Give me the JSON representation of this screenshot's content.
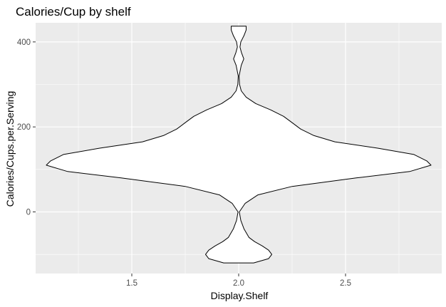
{
  "chart_data": {
    "type": "violin",
    "title": "Calories/Cup by shelf",
    "xlabel": "Display.Shelf",
    "ylabel": "Calories/Cups.per.Serving",
    "xlim": [
      1.05,
      2.95
    ],
    "ylim": [
      -145,
      445
    ],
    "x_ticks": [
      1.5,
      2.0,
      2.5
    ],
    "x_tick_labels": [
      "1.5",
      "2.0",
      "2.5"
    ],
    "y_ticks": [
      0,
      200,
      400
    ],
    "y_tick_labels": [
      "0",
      "200",
      "400"
    ],
    "grid": true,
    "background": "#EBEBEB",
    "violin": {
      "center_x": 2.0,
      "fill": "#FFFFFF",
      "stroke": "#000000",
      "profile": [
        {
          "y": -120,
          "half_width": 0.07
        },
        {
          "y": -110,
          "half_width": 0.14
        },
        {
          "y": -100,
          "half_width": 0.155
        },
        {
          "y": -90,
          "half_width": 0.14
        },
        {
          "y": -80,
          "half_width": 0.11
        },
        {
          "y": -70,
          "half_width": 0.075
        },
        {
          "y": -60,
          "half_width": 0.048
        },
        {
          "y": -40,
          "half_width": 0.025
        },
        {
          "y": -20,
          "half_width": 0.01
        },
        {
          "y": 0,
          "half_width": 0.003
        },
        {
          "y": 20,
          "half_width": 0.03
        },
        {
          "y": 40,
          "half_width": 0.09
        },
        {
          "y": 60,
          "half_width": 0.25
        },
        {
          "y": 80,
          "half_width": 0.55
        },
        {
          "y": 95,
          "half_width": 0.8
        },
        {
          "y": 110,
          "half_width": 0.9
        },
        {
          "y": 120,
          "half_width": 0.88
        },
        {
          "y": 135,
          "half_width": 0.82
        },
        {
          "y": 150,
          "half_width": 0.65
        },
        {
          "y": 165,
          "half_width": 0.45
        },
        {
          "y": 180,
          "half_width": 0.35
        },
        {
          "y": 195,
          "half_width": 0.29
        },
        {
          "y": 210,
          "half_width": 0.25
        },
        {
          "y": 225,
          "half_width": 0.21
        },
        {
          "y": 240,
          "half_width": 0.15
        },
        {
          "y": 255,
          "half_width": 0.08
        },
        {
          "y": 270,
          "half_width": 0.035
        },
        {
          "y": 285,
          "half_width": 0.012
        },
        {
          "y": 300,
          "half_width": 0.004
        },
        {
          "y": 320,
          "half_width": 0.002
        },
        {
          "y": 345,
          "half_width": 0.012
        },
        {
          "y": 360,
          "half_width": 0.024
        },
        {
          "y": 375,
          "half_width": 0.013
        },
        {
          "y": 388,
          "half_width": 0.006
        },
        {
          "y": 400,
          "half_width": 0.01
        },
        {
          "y": 415,
          "half_width": 0.025
        },
        {
          "y": 428,
          "half_width": 0.035
        },
        {
          "y": 437,
          "half_width": 0.035
        }
      ]
    }
  }
}
